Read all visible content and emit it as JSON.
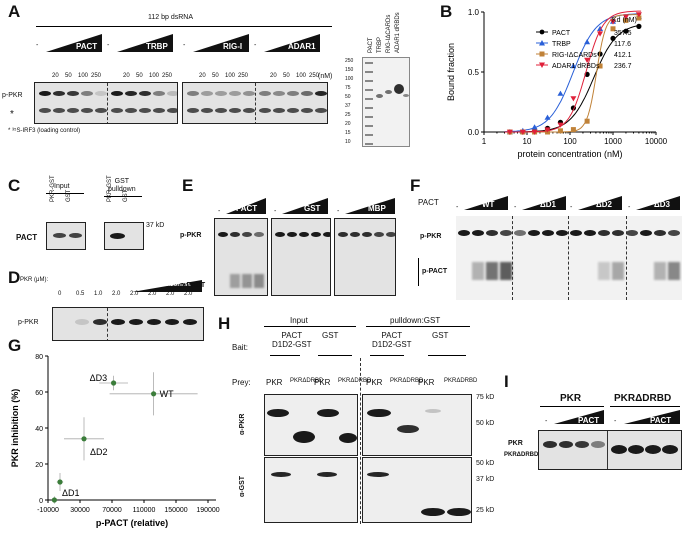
{
  "panels": {
    "A": "A",
    "B": "B",
    "C": "C",
    "D": "D",
    "E": "E",
    "F": "F",
    "G": "G",
    "H": "H",
    "I": "I"
  },
  "a": {
    "header": "112 bp dsRNA",
    "groups": [
      "PACT",
      "TRBP",
      "RIG-I",
      "ADAR1"
    ],
    "conc": [
      "20",
      "50",
      "100",
      "250"
    ],
    "unit": "(nM)",
    "minus": "-",
    "pkr_label": "p-PKR",
    "star": "*",
    "footnote": "* ³⁵S-IRF3 (loading control)",
    "gel_lanes": [
      "PACT",
      "TRBP",
      "RIG-IΔCARDs",
      "ADAR1 dRBDs"
    ],
    "markers": [
      "250",
      "150",
      "100",
      "75",
      "50",
      "37",
      "25",
      "20",
      "15",
      "10"
    ]
  },
  "b": {
    "kd_header": "Kd (nM)",
    "legend": [
      {
        "name": "PACT",
        "kd": "357.5",
        "color": "#000000",
        "marker": "circle"
      },
      {
        "name": "TRBP",
        "kd": "117.6",
        "color": "#2a60d8",
        "marker": "triangle"
      },
      {
        "name": "RIG-IΔCARDs",
        "kd": "412.1",
        "color": "#c08238",
        "marker": "square"
      },
      {
        "name": "ADAR1 dRBDs",
        "kd": "236.7",
        "color": "#e0213a",
        "marker": "triangle-down"
      }
    ]
  },
  "chart_data": [
    {
      "type": "scatter",
      "panel": "B",
      "xlabel": "protein concentration (nM)",
      "ylabel": "Bound fraction",
      "xscale": "log",
      "xlim": [
        1,
        10000
      ],
      "ylim": [
        0,
        1.0
      ],
      "xticks": [
        "1",
        "10",
        "100",
        "1000",
        "10000"
      ],
      "yticks": [
        "0.0",
        "0.5",
        "1.0"
      ],
      "x": [
        4,
        8,
        15,
        30,
        60,
        120,
        250,
        500,
        1000,
        2000,
        4000
      ],
      "series": [
        {
          "name": "PACT",
          "kd": 357.5,
          "values": [
            0.0,
            0.0,
            0.01,
            0.03,
            0.08,
            0.2,
            0.48,
            0.65,
            0.78,
            0.84,
            0.88
          ]
        },
        {
          "name": "TRBP",
          "kd": 117.6,
          "values": [
            0.0,
            0.01,
            0.04,
            0.12,
            0.32,
            0.55,
            0.75,
            0.86,
            0.92,
            0.95,
            0.96
          ]
        },
        {
          "name": "RIG-IΔCARDs",
          "kd": 412.1,
          "values": [
            0.0,
            0.0,
            0.0,
            0.0,
            0.01,
            0.02,
            0.09,
            0.55,
            0.86,
            0.93,
            0.95
          ]
        },
        {
          "name": "ADAR1 dRBDs",
          "kd": 236.7,
          "values": [
            0.0,
            0.0,
            0.0,
            0.02,
            0.06,
            0.28,
            0.6,
            0.82,
            0.92,
            0.96,
            0.98
          ]
        }
      ],
      "legend": "top-left",
      "grid": false
    },
    {
      "type": "scatter",
      "panel": "G",
      "xlabel": "p-PACT (relative)",
      "ylabel": "PKR inhibition (%)",
      "xlim": [
        -10000,
        200000
      ],
      "ylim": [
        0,
        80
      ],
      "xticks": [
        "-10000",
        "30000",
        "70000",
        "110000",
        "150000",
        "190000"
      ],
      "yticks": [
        "0",
        "20",
        "40",
        "60",
        "80"
      ],
      "points": [
        {
          "label": "ΔD1",
          "x": 5000,
          "y": 10,
          "xerr": 4000,
          "yerr": 5
        },
        {
          "label": "",
          "x": -2000,
          "y": 0,
          "xerr": 2000,
          "yerr": 2
        },
        {
          "label": "ΔD2",
          "x": 35000,
          "y": 34,
          "xerr": 25000,
          "yerr": 12
        },
        {
          "label": "ΔD3",
          "x": 72000,
          "y": 65,
          "xerr": 18000,
          "yerr": 4
        },
        {
          "label": "WT",
          "x": 122000,
          "y": 59,
          "xerr": 55000,
          "yerr": 12
        }
      ]
    }
  ],
  "c": {
    "input": "Input",
    "pulldown": "GST\npulldown",
    "lanes": [
      "PKR-GST",
      "GST",
      "PKR-GST",
      "GST"
    ],
    "row": "PACT",
    "marker": "37 kD"
  },
  "d": {
    "axis": "PKR (μM):",
    "values": [
      "0",
      "0.5",
      "1.0",
      "2.0",
      "2.0",
      "2.0",
      "2.0",
      "2.0"
    ],
    "benzonase": "benzonase",
    "pkr_label": "p-PKR"
  },
  "e": {
    "groups": [
      "PACT",
      "GST",
      "MBP"
    ],
    "minus": "-",
    "pkr_label": "p-PKR",
    "pact_label": "p-PACT"
  },
  "f": {
    "pact": "PACT",
    "groups": [
      "WT",
      "ΔD1",
      "ΔD2",
      "ΔD3"
    ],
    "minus": "-",
    "pkr_label": "p-PKR",
    "pact_label": "p-PACT"
  },
  "h": {
    "input": "Input",
    "pulldown": "pulldown:GST",
    "bait": "Bait:",
    "prey": "Prey:",
    "bait_groups": [
      "PACT\nD1D2-GST",
      "GST",
      "PACT\nD1D2-GST",
      "GST"
    ],
    "prey_lanes": [
      "PKR",
      "PKRΔDRBD",
      "PKR",
      "PKRΔDRBD",
      "PKR",
      "PKRΔDRBD",
      "PKR",
      "PKRΔDRBD"
    ],
    "rows": [
      "α-PKR",
      "α-GST"
    ],
    "markers_top": [
      "75 kD",
      "50 kD"
    ],
    "markers_bottom": [
      "50 kD",
      "37 kD",
      "25 kD"
    ]
  },
  "i": {
    "groups": [
      "PKR",
      "PKRΔDRBD"
    ],
    "pact": "PACT",
    "minus": "-",
    "labels": [
      "PKR",
      "PKRΔDRBD"
    ]
  }
}
